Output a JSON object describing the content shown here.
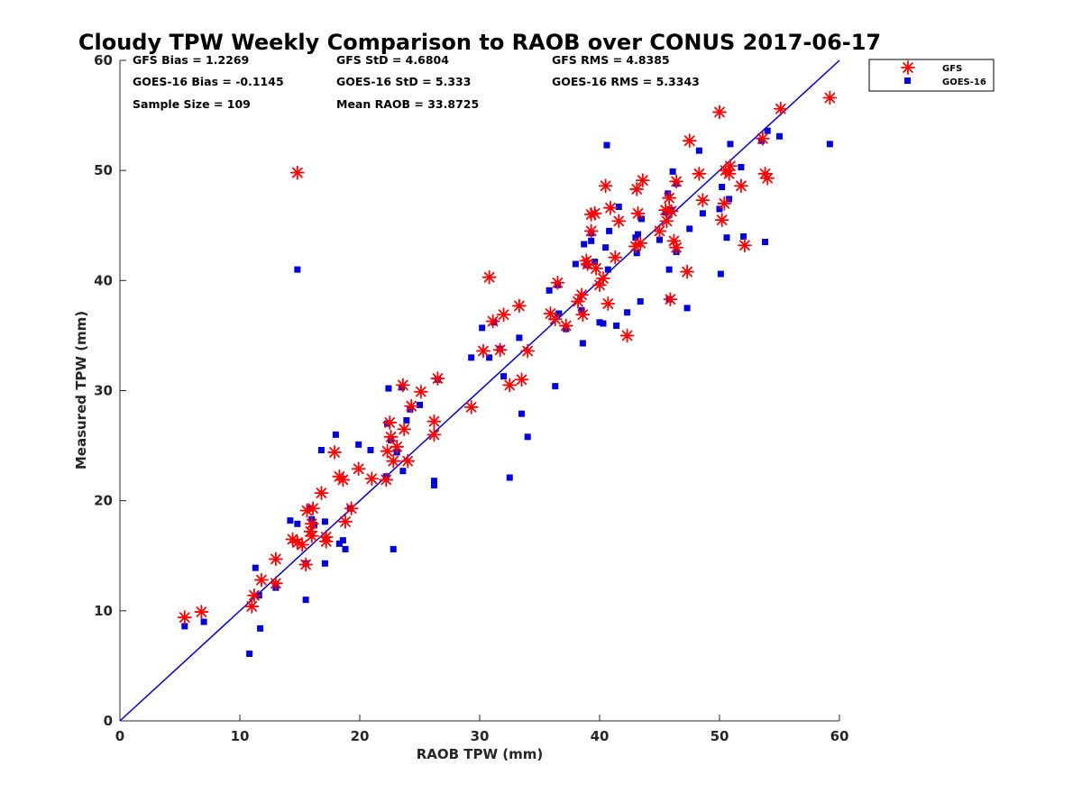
{
  "chart_data": {
    "type": "scatter",
    "title": "Cloudy TPW Weekly Comparison to RAOB over CONUS 2017-06-17",
    "xlabel": "RAOB TPW (mm)",
    "ylabel": "Measured TPW (mm)",
    "xlim": [
      0,
      60
    ],
    "ylim": [
      0,
      60
    ],
    "xticks": [
      "0",
      "10",
      "20",
      "30",
      "40",
      "50",
      "60"
    ],
    "yticks": [
      "0",
      "10",
      "20",
      "30",
      "40",
      "50",
      "60"
    ],
    "grid": false,
    "legend_position": "outside-top-right",
    "reference_line": {
      "from": [
        0,
        0
      ],
      "to": [
        60,
        60
      ],
      "color": "#0000dd"
    },
    "stats": [
      "GFS Bias = 1.2269",
      "GFS StD = 4.6804",
      "GFS RMS = 4.8385",
      "GOES-16 Bias = -0.1145",
      "GOES-16 StD = 5.333",
      "GOES-16 RMS = 5.3343",
      "Sample Size = 109",
      "Mean RAOB = 33.8725"
    ],
    "series": [
      {
        "name": "GFS",
        "marker": "asterisk",
        "color": "#ff0000",
        "points": [
          [
            5.4,
            9.4
          ],
          [
            6.8,
            9.9
          ],
          [
            11.0,
            10.4
          ],
          [
            11.2,
            11.4
          ],
          [
            11.8,
            12.8
          ],
          [
            13.0,
            12.5
          ],
          [
            13.0,
            14.7
          ],
          [
            14.4,
            16.5
          ],
          [
            14.8,
            16.2
          ],
          [
            15.2,
            16.0
          ],
          [
            15.5,
            14.2
          ],
          [
            15.6,
            19.1
          ],
          [
            15.9,
            17.2
          ],
          [
            16.0,
            16.8
          ],
          [
            16.1,
            19.3
          ],
          [
            16.0,
            17.9
          ],
          [
            16.8,
            20.7
          ],
          [
            17.2,
            16.3
          ],
          [
            17.2,
            16.7
          ],
          [
            17.9,
            24.4
          ],
          [
            18.3,
            22.2
          ],
          [
            18.6,
            21.9
          ],
          [
            18.8,
            18.1
          ],
          [
            19.3,
            19.3
          ],
          [
            19.9,
            22.9
          ],
          [
            21.0,
            22.0
          ],
          [
            22.2,
            21.9
          ],
          [
            22.3,
            24.5
          ],
          [
            22.5,
            27.1
          ],
          [
            22.6,
            25.8
          ],
          [
            22.8,
            23.6
          ],
          [
            23.1,
            24.9
          ],
          [
            23.6,
            30.5
          ],
          [
            23.7,
            26.5
          ],
          [
            24.0,
            23.6
          ],
          [
            24.3,
            28.6
          ],
          [
            25.1,
            29.9
          ],
          [
            26.2,
            26.0
          ],
          [
            26.2,
            27.2
          ],
          [
            26.5,
            31.1
          ],
          [
            29.3,
            28.5
          ],
          [
            30.3,
            33.6
          ],
          [
            30.8,
            40.3
          ],
          [
            31.1,
            36.3
          ],
          [
            31.7,
            33.7
          ],
          [
            32.0,
            36.9
          ],
          [
            32.5,
            30.5
          ],
          [
            33.3,
            37.7
          ],
          [
            33.5,
            31.0
          ],
          [
            34.0,
            33.6
          ],
          [
            35.9,
            37.0
          ],
          [
            36.3,
            36.5
          ],
          [
            36.5,
            39.8
          ],
          [
            37.2,
            35.9
          ],
          [
            38.2,
            38.1
          ],
          [
            38.5,
            38.7
          ],
          [
            38.6,
            36.9
          ],
          [
            38.9,
            41.8
          ],
          [
            39.0,
            41.5
          ],
          [
            39.3,
            46.0
          ],
          [
            39.3,
            44.5
          ],
          [
            39.6,
            46.1
          ],
          [
            39.7,
            41.1
          ],
          [
            40.0,
            39.6
          ],
          [
            40.3,
            40.2
          ],
          [
            40.5,
            48.6
          ],
          [
            40.7,
            37.9
          ],
          [
            40.9,
            46.6
          ],
          [
            41.3,
            42.1
          ],
          [
            41.6,
            45.4
          ],
          [
            42.3,
            35.0
          ],
          [
            43.0,
            43.1
          ],
          [
            43.1,
            48.3
          ],
          [
            43.2,
            46.1
          ],
          [
            43.4,
            43.4
          ],
          [
            43.6,
            49.1
          ],
          [
            45.0,
            44.5
          ],
          [
            45.5,
            46.4
          ],
          [
            45.6,
            45.4
          ],
          [
            45.8,
            47.5
          ],
          [
            45.9,
            38.3
          ],
          [
            46.0,
            46.3
          ],
          [
            46.2,
            43.6
          ],
          [
            46.4,
            43.0
          ],
          [
            46.4,
            49.0
          ],
          [
            47.3,
            40.8
          ],
          [
            47.5,
            52.7
          ],
          [
            48.3,
            49.7
          ],
          [
            48.6,
            47.3
          ],
          [
            50.0,
            55.3
          ],
          [
            50.2,
            45.5
          ],
          [
            50.4,
            47.0
          ],
          [
            50.5,
            50.0
          ],
          [
            50.8,
            49.7
          ],
          [
            50.9,
            50.4
          ],
          [
            51.8,
            48.6
          ],
          [
            52.1,
            43.2
          ],
          [
            53.6,
            52.9
          ],
          [
            53.8,
            49.7
          ],
          [
            54.0,
            49.3
          ],
          [
            55.1,
            55.6
          ],
          [
            59.2,
            56.6
          ],
          [
            14.8,
            49.8
          ]
        ]
      },
      {
        "name": "GOES-16",
        "marker": "square",
        "color": "#0000dd",
        "points": [
          [
            5.4,
            8.6
          ],
          [
            7.0,
            9.0
          ],
          [
            10.8,
            6.1
          ],
          [
            11.3,
            13.9
          ],
          [
            11.6,
            11.4
          ],
          [
            11.7,
            8.4
          ],
          [
            13.0,
            12.4
          ],
          [
            13.0,
            12.1
          ],
          [
            14.2,
            18.2
          ],
          [
            14.8,
            17.9
          ],
          [
            14.8,
            41.0
          ],
          [
            15.5,
            11.0
          ],
          [
            15.5,
            14.3
          ],
          [
            15.8,
            19.3
          ],
          [
            16.0,
            18.3
          ],
          [
            16.2,
            17.8
          ],
          [
            16.8,
            24.6
          ],
          [
            17.1,
            14.3
          ],
          [
            17.1,
            18.1
          ],
          [
            18.0,
            26.0
          ],
          [
            18.3,
            16.1
          ],
          [
            18.6,
            16.4
          ],
          [
            18.8,
            15.6
          ],
          [
            19.2,
            19.3
          ],
          [
            19.9,
            25.1
          ],
          [
            20.9,
            24.6
          ],
          [
            22.2,
            22.2
          ],
          [
            22.3,
            27.0
          ],
          [
            22.4,
            30.2
          ],
          [
            22.6,
            25.5
          ],
          [
            22.8,
            15.6
          ],
          [
            23.1,
            24.4
          ],
          [
            23.5,
            30.3
          ],
          [
            23.6,
            22.7
          ],
          [
            23.9,
            27.3
          ],
          [
            24.2,
            28.3
          ],
          [
            25.0,
            28.7
          ],
          [
            26.2,
            21.8
          ],
          [
            26.2,
            21.4
          ],
          [
            26.5,
            31.0
          ],
          [
            29.3,
            33.0
          ],
          [
            30.2,
            35.7
          ],
          [
            30.8,
            33.0
          ],
          [
            31.2,
            36.2
          ],
          [
            31.7,
            33.8
          ],
          [
            32.0,
            31.3
          ],
          [
            32.5,
            22.1
          ],
          [
            33.3,
            34.8
          ],
          [
            33.5,
            27.9
          ],
          [
            34.0,
            25.8
          ],
          [
            35.8,
            39.1
          ],
          [
            36.3,
            30.4
          ],
          [
            36.5,
            39.6
          ],
          [
            36.6,
            37.0
          ],
          [
            37.2,
            35.6
          ],
          [
            38.0,
            41.5
          ],
          [
            38.5,
            37.3
          ],
          [
            38.6,
            34.3
          ],
          [
            38.7,
            43.3
          ],
          [
            38.9,
            41.4
          ],
          [
            39.3,
            44.3
          ],
          [
            39.3,
            43.6
          ],
          [
            39.6,
            41.7
          ],
          [
            40.0,
            36.2
          ],
          [
            40.3,
            36.1
          ],
          [
            40.5,
            43.0
          ],
          [
            40.6,
            52.3
          ],
          [
            40.7,
            41.0
          ],
          [
            40.8,
            44.5
          ],
          [
            41.4,
            35.9
          ],
          [
            41.6,
            46.7
          ],
          [
            42.3,
            37.1
          ],
          [
            43.0,
            43.9
          ],
          [
            43.1,
            42.5
          ],
          [
            43.2,
            44.2
          ],
          [
            43.4,
            38.1
          ],
          [
            43.5,
            45.6
          ],
          [
            45.0,
            43.7
          ],
          [
            45.5,
            46.2
          ],
          [
            45.7,
            47.9
          ],
          [
            45.8,
            38.3
          ],
          [
            45.8,
            41.0
          ],
          [
            46.0,
            46.4
          ],
          [
            46.1,
            49.9
          ],
          [
            46.4,
            42.6
          ],
          [
            46.4,
            48.8
          ],
          [
            47.3,
            37.5
          ],
          [
            47.5,
            44.7
          ],
          [
            48.3,
            51.8
          ],
          [
            48.6,
            46.1
          ],
          [
            50.0,
            46.5
          ],
          [
            50.1,
            40.6
          ],
          [
            50.2,
            48.5
          ],
          [
            50.6,
            43.9
          ],
          [
            50.8,
            47.4
          ],
          [
            50.9,
            52.4
          ],
          [
            51.8,
            50.3
          ],
          [
            52.0,
            44.0
          ],
          [
            53.5,
            52.7
          ],
          [
            53.8,
            43.5
          ],
          [
            54.0,
            53.6
          ],
          [
            55.0,
            53.1
          ],
          [
            59.2,
            52.4
          ]
        ]
      }
    ]
  }
}
